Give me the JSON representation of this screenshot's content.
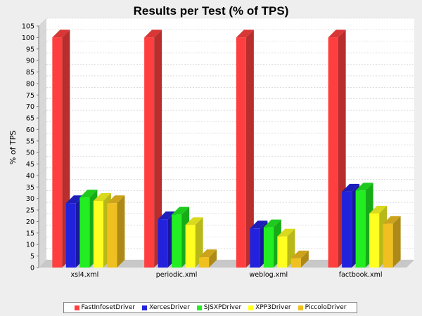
{
  "chart_data": {
    "type": "bar",
    "title": "Results per Test (% of TPS)",
    "xlabel": "",
    "ylabel": "% of TPS",
    "ylim": [
      0,
      105
    ],
    "ytick_step": 5,
    "grid": true,
    "legend_position": "bottom",
    "style": "3d",
    "categories": [
      "xsl4.xml",
      "periodic.xml",
      "weblog.xml",
      "factbook.xml"
    ],
    "series": [
      {
        "name": "FastInfosetDriver",
        "color": "#ff3f3f",
        "values": [
          100,
          100,
          100,
          100
        ]
      },
      {
        "name": "XercesDriver",
        "color": "#2222dd",
        "values": [
          28,
          21,
          17,
          33
        ]
      },
      {
        "name": "SJSXPDriver",
        "color": "#22ee22",
        "values": [
          30.5,
          23,
          17.5,
          33.5
        ]
      },
      {
        "name": "XPP3Driver",
        "color": "#ffff22",
        "values": [
          29,
          18.5,
          13.5,
          23.5
        ]
      },
      {
        "name": "PiccoloDriver",
        "color": "#f0c020",
        "values": [
          28,
          4.5,
          4,
          19
        ]
      }
    ]
  }
}
